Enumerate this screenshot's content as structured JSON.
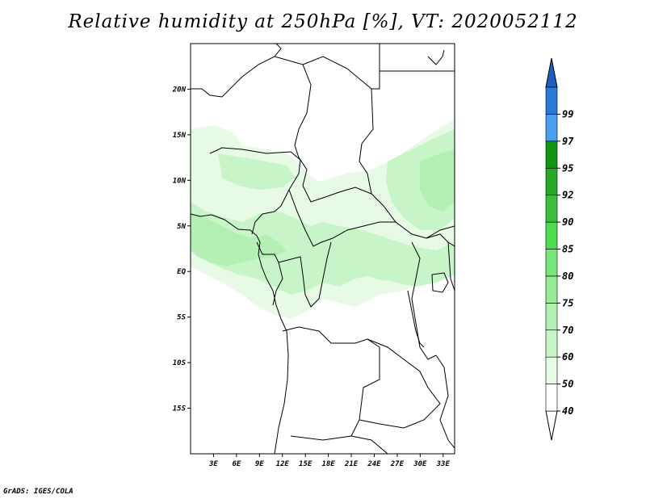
{
  "title": "Relative humidity at 250hPa [%], VT: 2020052112",
  "credit": "GrADS: IGES/COLA",
  "map": {
    "lon_range": [
      0,
      34.5
    ],
    "lat_range": [
      -20,
      25
    ],
    "lat_ticks": [
      {
        "value": 20,
        "label": "20N"
      },
      {
        "value": 15,
        "label": "15N"
      },
      {
        "value": 10,
        "label": "10N"
      },
      {
        "value": 5,
        "label": "5N"
      },
      {
        "value": 0,
        "label": "EQ"
      },
      {
        "value": -5,
        "label": "5S"
      },
      {
        "value": -10,
        "label": "10S"
      },
      {
        "value": -15,
        "label": "15S"
      }
    ],
    "lon_ticks": [
      {
        "value": 3,
        "label": "3E"
      },
      {
        "value": 6,
        "label": "6E"
      },
      {
        "value": 9,
        "label": "9E"
      },
      {
        "value": 12,
        "label": "12E"
      },
      {
        "value": 15,
        "label": "15E"
      },
      {
        "value": 18,
        "label": "18E"
      },
      {
        "value": 21,
        "label": "21E"
      },
      {
        "value": 24,
        "label": "24E"
      },
      {
        "value": 27,
        "label": "27E"
      },
      {
        "value": 30,
        "label": "30E"
      },
      {
        "value": 33,
        "label": "33E"
      }
    ]
  },
  "legend": {
    "bins": [
      {
        "label": "40",
        "color": "#ffffff"
      },
      {
        "label": "50",
        "color": "#e6fae6"
      },
      {
        "label": "60",
        "color": "#c8f5c8"
      },
      {
        "label": "70",
        "color": "#b4f0b4"
      },
      {
        "label": "75",
        "color": "#96eb96"
      },
      {
        "label": "80",
        "color": "#78e678"
      },
      {
        "label": "85",
        "color": "#50dc50"
      },
      {
        "label": "90",
        "color": "#3cbe3c"
      },
      {
        "label": "92",
        "color": "#28aa28"
      },
      {
        "label": "95",
        "color": "#129612"
      },
      {
        "label": "97",
        "color": "#4a9ef0"
      },
      {
        "label": "99",
        "color": "#2a78d8"
      }
    ],
    "top_arrow_color": "#1e5fbe",
    "bottom_arrow_color": "#ffffff"
  },
  "colors": {
    "rh_light": "#e6fae6",
    "rh_mid": "#c8f5c8",
    "rh_high": "#b4f0b4",
    "border": "#000000"
  }
}
